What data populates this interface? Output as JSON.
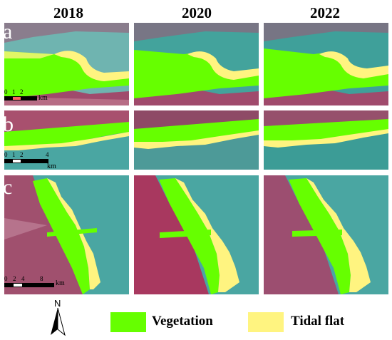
{
  "years": [
    "2018",
    "2020",
    "2022"
  ],
  "rows": [
    {
      "label": "a",
      "scale_ticks": [
        "0",
        "1",
        "2"
      ],
      "scale_unit": "km"
    },
    {
      "label": "b",
      "scale_ticks": [
        "0",
        "1",
        "2",
        "4"
      ],
      "scale_unit": "km"
    },
    {
      "label": "c",
      "scale_ticks": [
        "0",
        "2",
        "4",
        "",
        "8"
      ],
      "scale_unit": "km"
    }
  ],
  "legend": {
    "north_label": "N",
    "items": [
      {
        "name": "Vegetation",
        "color": "#66ff00"
      },
      {
        "name": "Tidal flat",
        "color": "#fff480"
      }
    ]
  },
  "colors": {
    "water": "#4aa6a2",
    "land": "#a04a6c",
    "vegetation": "#66ff00",
    "tidal_flat": "#fff480"
  }
}
